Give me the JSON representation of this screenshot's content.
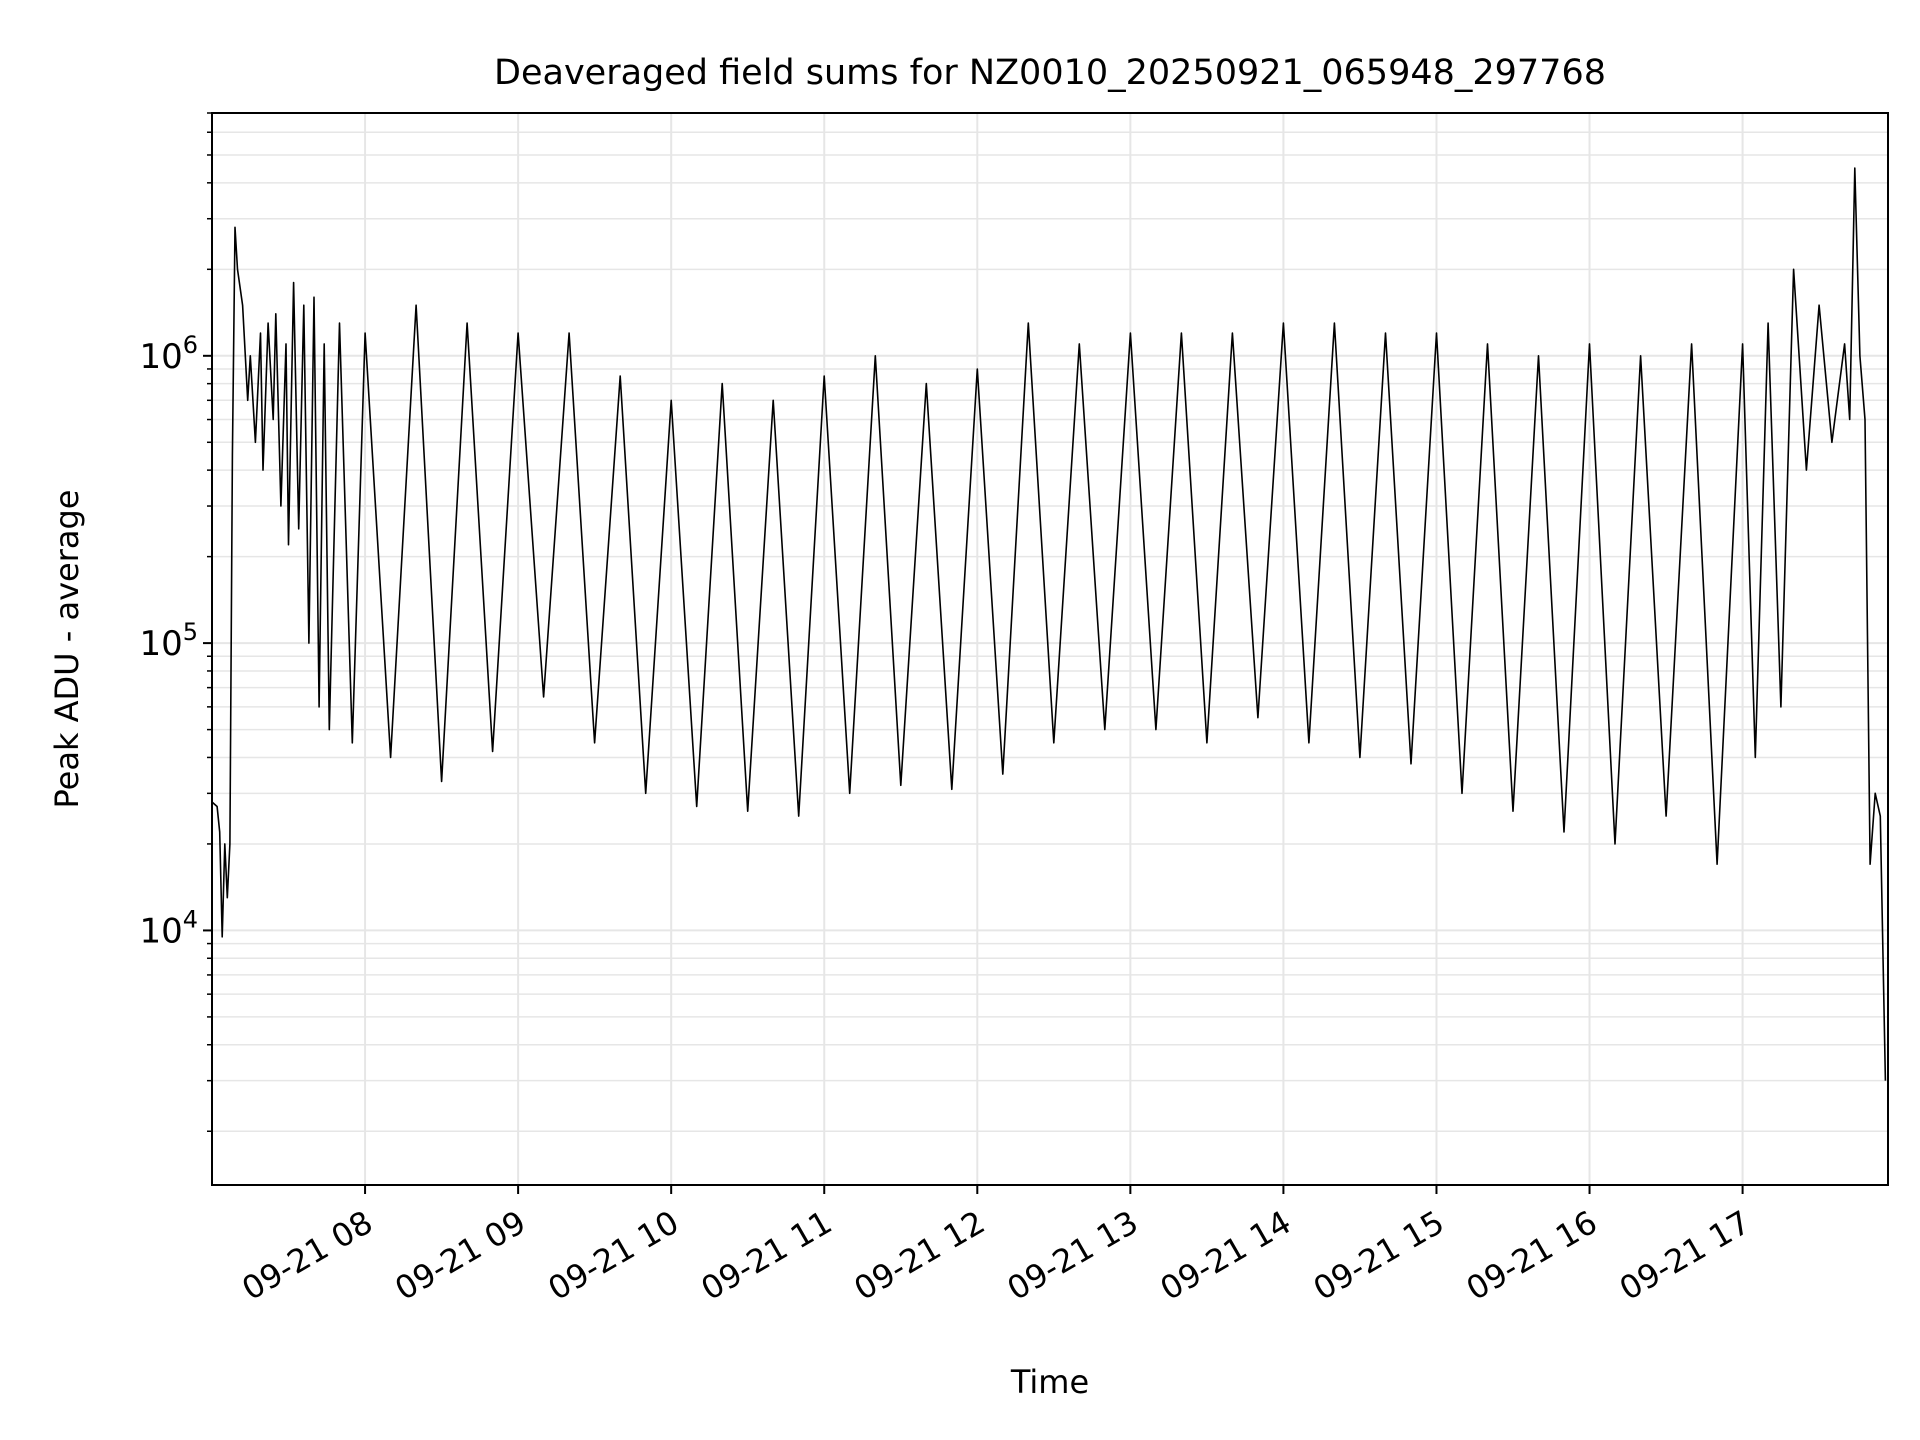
{
  "chart_data": {
    "type": "line",
    "title": "Deaveraged field sums for NZ0010_20250921_065948_297768",
    "xlabel": "Time",
    "ylabel": "Peak ADU - average",
    "yscale": "log",
    "grid": true,
    "legend": "none",
    "line_color": "#000000",
    "grid_color": "#e6e6e6",
    "xlim": [
      "2025-09-21T07:00",
      "2025-09-21T17:57"
    ],
    "ylim": [
      1300,
      7000000
    ],
    "x_ticks": [
      {
        "time": "2025-09-21T08:00",
        "label": "09-21 08"
      },
      {
        "time": "2025-09-21T09:00",
        "label": "09-21 09"
      },
      {
        "time": "2025-09-21T10:00",
        "label": "09-21 10"
      },
      {
        "time": "2025-09-21T11:00",
        "label": "09-21 11"
      },
      {
        "time": "2025-09-21T12:00",
        "label": "09-21 12"
      },
      {
        "time": "2025-09-21T13:00",
        "label": "09-21 13"
      },
      {
        "time": "2025-09-21T14:00",
        "label": "09-21 14"
      },
      {
        "time": "2025-09-21T15:00",
        "label": "09-21 15"
      },
      {
        "time": "2025-09-21T16:00",
        "label": "09-21 16"
      },
      {
        "time": "2025-09-21T17:00",
        "label": "09-21 17"
      }
    ],
    "y_ticks": [
      {
        "value": 10000,
        "base": "10",
        "exp": "4"
      },
      {
        "value": 100000,
        "base": "10",
        "exp": "5"
      },
      {
        "value": 1000000,
        "base": "10",
        "exp": "6"
      }
    ],
    "series": [
      {
        "points": [
          [
            "2025-09-21T07:00",
            28000
          ],
          [
            "2025-09-21T07:02",
            27000
          ],
          [
            "2025-09-21T07:03",
            22000
          ],
          [
            "2025-09-21T07:04",
            9500
          ],
          [
            "2025-09-21T07:05",
            20000
          ],
          [
            "2025-09-21T07:06",
            13000
          ],
          [
            "2025-09-21T07:07",
            20000
          ],
          [
            "2025-09-21T07:08",
            450000
          ],
          [
            "2025-09-21T07:09",
            2800000
          ],
          [
            "2025-09-21T07:10",
            2000000
          ],
          [
            "2025-09-21T07:12",
            1500000
          ],
          [
            "2025-09-21T07:14",
            700000
          ],
          [
            "2025-09-21T07:15",
            1000000
          ],
          [
            "2025-09-21T07:17",
            500000
          ],
          [
            "2025-09-21T07:19",
            1200000
          ],
          [
            "2025-09-21T07:20",
            400000
          ],
          [
            "2025-09-21T07:22",
            1300000
          ],
          [
            "2025-09-21T07:24",
            600000
          ],
          [
            "2025-09-21T07:25",
            1400000
          ],
          [
            "2025-09-21T07:27",
            300000
          ],
          [
            "2025-09-21T07:29",
            1100000
          ],
          [
            "2025-09-21T07:30",
            220000
          ],
          [
            "2025-09-21T07:32",
            1800000
          ],
          [
            "2025-09-21T07:34",
            250000
          ],
          [
            "2025-09-21T07:36",
            1500000
          ],
          [
            "2025-09-21T07:38",
            100000
          ],
          [
            "2025-09-21T07:40",
            1600000
          ],
          [
            "2025-09-21T07:42",
            60000
          ],
          [
            "2025-09-21T07:44",
            1100000
          ],
          [
            "2025-09-21T07:46",
            50000
          ],
          [
            "2025-09-21T07:50",
            1300000
          ],
          [
            "2025-09-21T07:55",
            45000
          ],
          [
            "2025-09-21T08:00",
            1200000
          ],
          [
            "2025-09-21T08:10",
            40000
          ],
          [
            "2025-09-21T08:20",
            1500000
          ],
          [
            "2025-09-21T08:30",
            33000
          ],
          [
            "2025-09-21T08:40",
            1300000
          ],
          [
            "2025-09-21T08:50",
            42000
          ],
          [
            "2025-09-21T09:00",
            1200000
          ],
          [
            "2025-09-21T09:10",
            65000
          ],
          [
            "2025-09-21T09:20",
            1200000
          ],
          [
            "2025-09-21T09:30",
            45000
          ],
          [
            "2025-09-21T09:40",
            850000
          ],
          [
            "2025-09-21T09:50",
            30000
          ],
          [
            "2025-09-21T10:00",
            700000
          ],
          [
            "2025-09-21T10:10",
            27000
          ],
          [
            "2025-09-21T10:20",
            800000
          ],
          [
            "2025-09-21T10:30",
            26000
          ],
          [
            "2025-09-21T10:40",
            700000
          ],
          [
            "2025-09-21T10:50",
            25000
          ],
          [
            "2025-09-21T11:00",
            850000
          ],
          [
            "2025-09-21T11:10",
            30000
          ],
          [
            "2025-09-21T11:20",
            1000000
          ],
          [
            "2025-09-21T11:30",
            32000
          ],
          [
            "2025-09-21T11:40",
            800000
          ],
          [
            "2025-09-21T11:50",
            31000
          ],
          [
            "2025-09-21T12:00",
            900000
          ],
          [
            "2025-09-21T12:10",
            35000
          ],
          [
            "2025-09-21T12:20",
            1300000
          ],
          [
            "2025-09-21T12:30",
            45000
          ],
          [
            "2025-09-21T12:40",
            1100000
          ],
          [
            "2025-09-21T12:50",
            50000
          ],
          [
            "2025-09-21T13:00",
            1200000
          ],
          [
            "2025-09-21T13:10",
            50000
          ],
          [
            "2025-09-21T13:20",
            1200000
          ],
          [
            "2025-09-21T13:30",
            45000
          ],
          [
            "2025-09-21T13:40",
            1200000
          ],
          [
            "2025-09-21T13:50",
            55000
          ],
          [
            "2025-09-21T14:00",
            1300000
          ],
          [
            "2025-09-21T14:10",
            45000
          ],
          [
            "2025-09-21T14:20",
            1300000
          ],
          [
            "2025-09-21T14:30",
            40000
          ],
          [
            "2025-09-21T14:40",
            1200000
          ],
          [
            "2025-09-21T14:50",
            38000
          ],
          [
            "2025-09-21T15:00",
            1200000
          ],
          [
            "2025-09-21T15:10",
            30000
          ],
          [
            "2025-09-21T15:20",
            1100000
          ],
          [
            "2025-09-21T15:30",
            26000
          ],
          [
            "2025-09-21T15:40",
            1000000
          ],
          [
            "2025-09-21T15:50",
            22000
          ],
          [
            "2025-09-21T16:00",
            1100000
          ],
          [
            "2025-09-21T16:10",
            20000
          ],
          [
            "2025-09-21T16:20",
            1000000
          ],
          [
            "2025-09-21T16:30",
            25000
          ],
          [
            "2025-09-21T16:40",
            1100000
          ],
          [
            "2025-09-21T16:50",
            17000
          ],
          [
            "2025-09-21T17:00",
            1100000
          ],
          [
            "2025-09-21T17:05",
            40000
          ],
          [
            "2025-09-21T17:10",
            1300000
          ],
          [
            "2025-09-21T17:15",
            60000
          ],
          [
            "2025-09-21T17:20",
            2000000
          ],
          [
            "2025-09-21T17:25",
            400000
          ],
          [
            "2025-09-21T17:30",
            1500000
          ],
          [
            "2025-09-21T17:35",
            500000
          ],
          [
            "2025-09-21T17:40",
            1100000
          ],
          [
            "2025-09-21T17:42",
            600000
          ],
          [
            "2025-09-21T17:44",
            4500000
          ],
          [
            "2025-09-21T17:46",
            1000000
          ],
          [
            "2025-09-21T17:48",
            600000
          ],
          [
            "2025-09-21T17:50",
            17000
          ],
          [
            "2025-09-21T17:52",
            30000
          ],
          [
            "2025-09-21T17:54",
            25000
          ],
          [
            "2025-09-21T17:56",
            3000
          ]
        ]
      }
    ]
  }
}
